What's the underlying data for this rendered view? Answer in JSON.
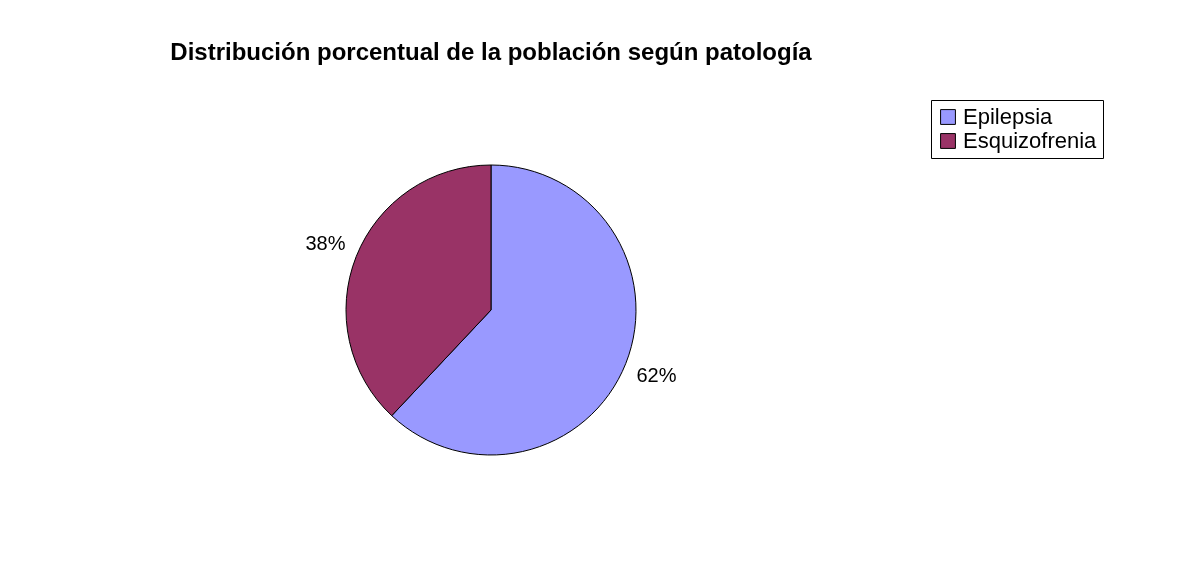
{
  "chart_data": {
    "type": "pie",
    "title": "Distribución porcentual de la población según patología",
    "categories": [
      "Epilepsia",
      "Esquizofrenia"
    ],
    "values": [
      62,
      38
    ],
    "colors": [
      "#9999ff",
      "#993366"
    ],
    "value_labels": [
      "62%",
      "38%"
    ],
    "legend": "right"
  }
}
